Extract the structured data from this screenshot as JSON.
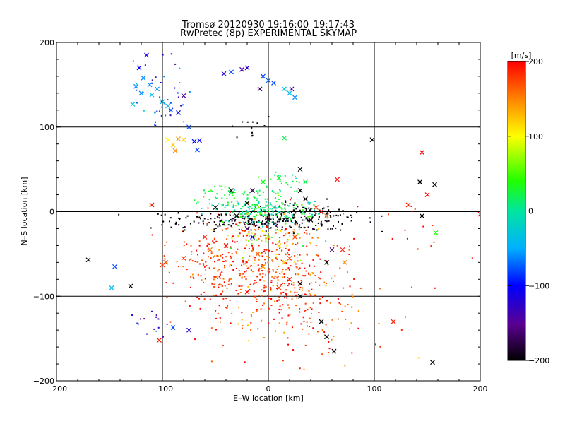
{
  "chart_data": {
    "type": "scatter",
    "title": "Tromsø 20120930 19:16:00–19:17:43",
    "subtitle": "RwPretec (8p) EXPERIMENTAL SKYMAP",
    "xlabel": "E–W location [km]",
    "ylabel": "N–S location [km]",
    "xlim": [
      -200,
      200
    ],
    "ylim": [
      -200,
      200
    ],
    "grid": true,
    "x_ticks": [
      -200,
      -100,
      0,
      100,
      200
    ],
    "y_ticks": [
      -200,
      -100,
      0,
      100,
      200
    ],
    "x_tick_labels": [
      "−200",
      "−100",
      "0",
      "100",
      "200"
    ],
    "y_tick_labels": [
      "−200",
      "−100",
      "0",
      "100",
      "200"
    ],
    "colorbar": {
      "label": "[m/s]",
      "min": -200,
      "max": 200,
      "ticks": [
        200,
        100,
        0,
        -100,
        -200
      ],
      "tick_labels": [
        "200",
        "100",
        "0",
        "−100",
        "−200"
      ]
    },
    "crosses": [
      [
        -115,
        185,
        -120
      ],
      [
        -122,
        170,
        -100
      ],
      [
        -118,
        158,
        -60
      ],
      [
        -125,
        148,
        -60
      ],
      [
        -112,
        150,
        -60
      ],
      [
        -105,
        145,
        -60
      ],
      [
        -100,
        130,
        -40
      ],
      [
        -95,
        125,
        -40
      ],
      [
        -110,
        138,
        -40
      ],
      [
        -128,
        127,
        -20
      ],
      [
        -120,
        140,
        -60
      ],
      [
        -92,
        120,
        -80
      ],
      [
        -85,
        117,
        -100
      ],
      [
        -80,
        137,
        -140
      ],
      [
        -75,
        100,
        -80
      ],
      [
        -70,
        83,
        -100
      ],
      [
        -65,
        84,
        -100
      ],
      [
        -67,
        73,
        -80
      ],
      [
        -85,
        86,
        140
      ],
      [
        -80,
        85,
        120
      ],
      [
        -90,
        79,
        120
      ],
      [
        -95,
        85,
        100
      ],
      [
        -88,
        72,
        150
      ],
      [
        -42,
        163,
        -120
      ],
      [
        -35,
        165,
        -80
      ],
      [
        -20,
        170,
        -120
      ],
      [
        -25,
        168,
        -140
      ],
      [
        -5,
        160,
        -80
      ],
      [
        0,
        155,
        -70
      ],
      [
        5,
        152,
        -80
      ],
      [
        15,
        145,
        -40
      ],
      [
        20,
        140,
        -40
      ],
      [
        25,
        135,
        -60
      ],
      [
        22,
        145,
        -140
      ],
      [
        -8,
        145,
        -160
      ],
      [
        -50,
        5,
        -200
      ],
      [
        -30,
        -5,
        -200
      ],
      [
        -20,
        10,
        -200
      ],
      [
        -15,
        25,
        -180
      ],
      [
        30,
        50,
        -200
      ],
      [
        30,
        25,
        -200
      ],
      [
        35,
        15,
        -200
      ],
      [
        40,
        -10,
        -200
      ],
      [
        45,
        5,
        180
      ],
      [
        50,
        0,
        200
      ],
      [
        55,
        -5,
        160
      ],
      [
        65,
        38,
        200
      ],
      [
        98,
        85,
        -200
      ],
      [
        15,
        87,
        20
      ],
      [
        -170,
        -57,
        -200
      ],
      [
        -145,
        -65,
        -80
      ],
      [
        -148,
        -90,
        -40
      ],
      [
        -130,
        -88,
        -200
      ],
      [
        -100,
        -63,
        180
      ],
      [
        -97,
        -60,
        170
      ],
      [
        -110,
        8,
        190
      ],
      [
        -103,
        -152,
        190
      ],
      [
        -75,
        -140,
        -120
      ],
      [
        -90,
        -137,
        -80
      ],
      [
        30,
        -100,
        -200
      ],
      [
        30,
        -85,
        -200
      ],
      [
        55,
        -60,
        -200
      ],
      [
        60,
        -45,
        -160
      ],
      [
        72,
        -60,
        150
      ],
      [
        50,
        -130,
        -200
      ],
      [
        55,
        -148,
        -200
      ],
      [
        62,
        -165,
        -200
      ],
      [
        118,
        -130,
        190
      ],
      [
        143,
        35,
        -200
      ],
      [
        157,
        32,
        -200
      ],
      [
        145,
        70,
        200
      ],
      [
        150,
        20,
        200
      ],
      [
        132,
        8,
        190
      ],
      [
        145,
        -5,
        -200
      ],
      [
        158,
        -25,
        40
      ],
      [
        155,
        -178,
        -200
      ],
      [
        200,
        -3,
        200
      ],
      [
        -10,
        -50,
        170
      ],
      [
        10,
        -40,
        120
      ],
      [
        0,
        -30,
        80
      ],
      [
        -5,
        -65,
        140
      ],
      [
        15,
        -60,
        110
      ],
      [
        20,
        -55,
        170
      ],
      [
        -15,
        -30,
        -100
      ],
      [
        -20,
        -20,
        -160
      ],
      [
        25,
        -30,
        170
      ],
      [
        20,
        -80,
        190
      ],
      [
        10,
        -90,
        180
      ],
      [
        -20,
        -95,
        200
      ],
      [
        -55,
        -45,
        160
      ],
      [
        -60,
        -30,
        190
      ],
      [
        -80,
        -55,
        180
      ],
      [
        -40,
        -40,
        200
      ],
      [
        70,
        -45,
        190
      ],
      [
        -5,
        35,
        30
      ],
      [
        10,
        40,
        30
      ],
      [
        -35,
        25,
        -200
      ],
      [
        35,
        35,
        20
      ],
      [
        0,
        -10,
        -180
      ],
      [
        5,
        5,
        0
      ]
    ]
  }
}
